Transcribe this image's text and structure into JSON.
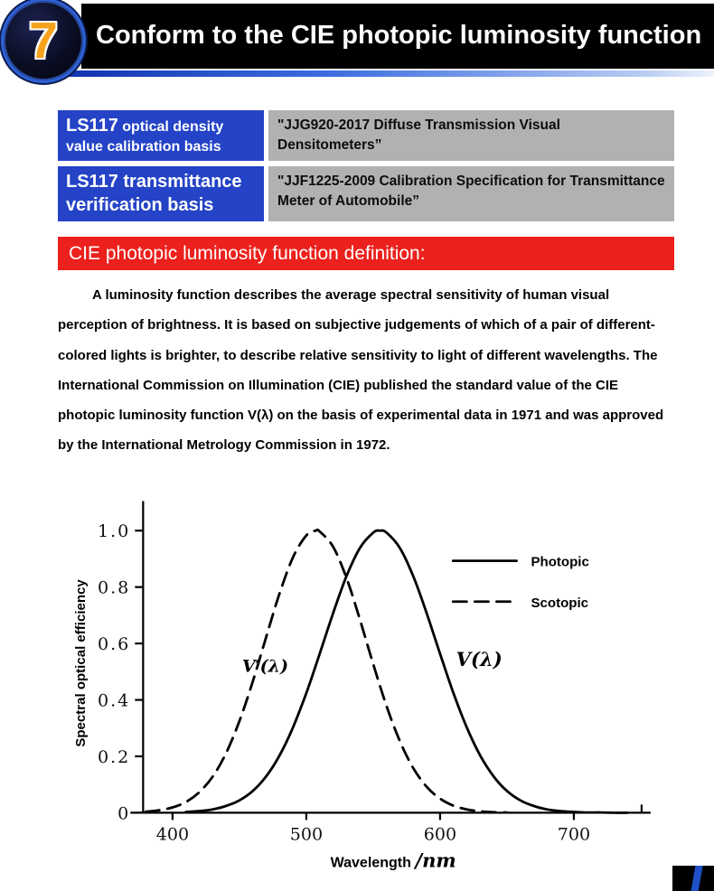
{
  "header": {
    "number": "7",
    "title": "Conform to the CIE photopic luminosity function"
  },
  "basis_table": {
    "rows": [
      {
        "lead": "LS117",
        "rest": " optical density value calibration basis",
        "value": "\"JJG920-2017 Diffuse Transmission Visual Densitometers”"
      },
      {
        "lead": "LS117 transmittance verification basis",
        "rest": "",
        "value": "\"JJF1225-2009 Calibration Specification for Transmittance Meter of Automobile”"
      }
    ]
  },
  "definition": {
    "heading": "CIE photopic luminosity function definition:",
    "body": "A luminosity function describes the average spectral sensitivity of human visual perception of brightness. It is based on subjective judgements of which of a pair of different-colored lights is brighter, to describe relative sensitivity to light of different wavelengths. The International Commission on Illumination (CIE) published the standard value of the CIE photopic luminosity function V(λ) on the basis of experimental data in 1971 and was approved by the International Metrology Commission in 1972."
  },
  "colors": {
    "label_cell_blue": "#2443c6",
    "value_cell_gray": "#b1b1b1",
    "banner_red": "#ec201c",
    "badge_number_orange": "#f6a21c",
    "accent_line_blue": "#3f6fe0"
  },
  "chart_data": {
    "type": "line",
    "title": "",
    "xlabel": "Wavelength /nm",
    "xlabel_main": "Wavelength",
    "xlabel_unit": "/nm",
    "ylabel": "Spectral optical efficiency",
    "xlim": [
      378,
      752
    ],
    "ylim": [
      0,
      1.06
    ],
    "xticks": [
      400,
      500,
      600,
      700
    ],
    "yticks": [
      0,
      0.2,
      0.4,
      0.6,
      0.8,
      1.0
    ],
    "grid": false,
    "legend_position": "upper right",
    "legend": [
      {
        "name": "Photopic",
        "style": "solid"
      },
      {
        "name": "Scotopic",
        "style": "dashed"
      }
    ],
    "annotations": [
      {
        "text": "V′(λ)",
        "x": 452,
        "y": 0.5,
        "size": 19
      },
      {
        "text": "V(λ)",
        "x": 612,
        "y": 0.52,
        "size": 21
      }
    ],
    "series": [
      {
        "name": "Photopic",
        "style": "solid",
        "peak_nm": 555,
        "x": [
          410,
          420,
          430,
          440,
          450,
          460,
          470,
          480,
          490,
          500,
          510,
          520,
          530,
          540,
          550,
          555,
          560,
          570,
          580,
          590,
          600,
          610,
          620,
          630,
          640,
          650,
          660,
          670,
          680,
          690,
          700,
          710,
          720,
          730,
          740
        ],
        "y": [
          0.003,
          0.006,
          0.012,
          0.024,
          0.044,
          0.077,
          0.129,
          0.203,
          0.302,
          0.424,
          0.563,
          0.707,
          0.838,
          0.938,
          0.993,
          1.0,
          0.993,
          0.938,
          0.838,
          0.707,
          0.563,
          0.424,
          0.302,
          0.203,
          0.129,
          0.077,
          0.044,
          0.024,
          0.012,
          0.006,
          0.003,
          0.001,
          0.001,
          0.0,
          0.0
        ]
      },
      {
        "name": "Scotopic",
        "style": "dashed",
        "peak_nm": 507,
        "x": [
          380,
          390,
          400,
          410,
          420,
          430,
          440,
          450,
          460,
          470,
          480,
          490,
          500,
          507,
          510,
          520,
          530,
          540,
          550,
          560,
          570,
          580,
          590,
          600,
          610,
          620,
          630,
          640,
          650
        ],
        "y": [
          0.004,
          0.009,
          0.019,
          0.038,
          0.073,
          0.128,
          0.211,
          0.325,
          0.465,
          0.623,
          0.777,
          0.905,
          0.983,
          1.0,
          0.997,
          0.943,
          0.833,
          0.686,
          0.527,
          0.378,
          0.253,
          0.158,
          0.092,
          0.05,
          0.025,
          0.012,
          0.005,
          0.002,
          0.001
        ]
      }
    ]
  }
}
